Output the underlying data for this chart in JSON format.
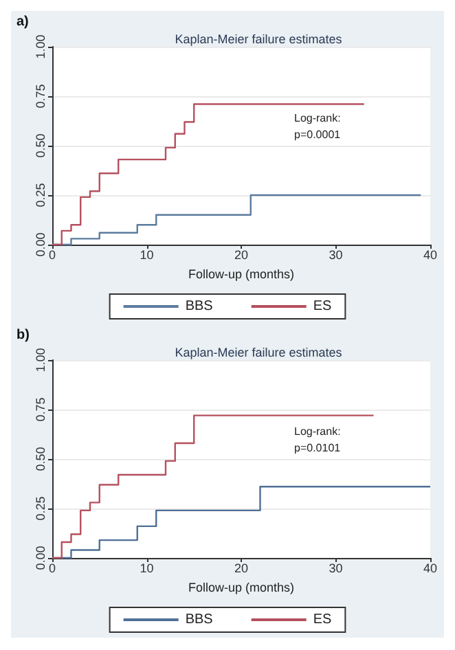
{
  "chart_data": [
    {
      "type": "step",
      "title": "Kaplan-Meier failure estimates",
      "xlabel": "Follow-up (months)",
      "annotations": [
        "a)",
        "Log-rank:\np=0.0001"
      ],
      "series": [
        {
          "name": "BBS",
          "color": "#5b7b9e",
          "x": [
            0,
            2,
            5,
            9,
            11,
            21,
            39
          ],
          "values": [
            0,
            0.03,
            0.06,
            0.1,
            0.15,
            0.25,
            0.25
          ]
        },
        {
          "name": "ES",
          "color": "#b5505e",
          "x": [
            0,
            1,
            2,
            3,
            4,
            5,
            7,
            12,
            13,
            14,
            15,
            33
          ],
          "values": [
            0,
            0.07,
            0.1,
            0.24,
            0.27,
            0.36,
            0.43,
            0.49,
            0.56,
            0.62,
            0.71,
            0.71
          ]
        }
      ],
      "xlim": [
        0,
        40
      ],
      "xticks": [
        0,
        10,
        20,
        30,
        40
      ],
      "ylim": [
        0,
        1
      ],
      "yticks": [
        {
          "value": 0,
          "label": "0.00"
        },
        {
          "value": 0.25,
          "label": "0.25"
        },
        {
          "value": 0.5,
          "label": "0.50"
        },
        {
          "value": 0.75,
          "label": "0.75"
        },
        {
          "value": 1,
          "label": "1.00"
        }
      ],
      "grid": "y",
      "legend": "bottom",
      "marker": "none",
      "line_style": "solid"
    },
    {
      "type": "step",
      "title": "Kaplan-Meier failure estimates",
      "xlabel": "Follow-up (months)",
      "annotations": [
        "b)",
        "Log-rank:\np=0.0101"
      ],
      "series": [
        {
          "name": "BBS",
          "color": "#4f6f96",
          "x": [
            0,
            2,
            5,
            9,
            11,
            22,
            40
          ],
          "values": [
            0,
            0.04,
            0.09,
            0.16,
            0.24,
            0.36,
            0.36
          ]
        },
        {
          "name": "ES",
          "color": "#b5505e",
          "x": [
            0,
            1,
            2,
            3,
            4,
            5,
            7,
            12,
            13,
            15,
            34
          ],
          "values": [
            0,
            0.08,
            0.12,
            0.24,
            0.28,
            0.37,
            0.42,
            0.49,
            0.58,
            0.72,
            0.72
          ]
        }
      ],
      "xlim": [
        0,
        40
      ],
      "xticks": [
        0,
        10,
        20,
        30,
        40
      ],
      "ylim": [
        0,
        1
      ],
      "yticks": [
        {
          "value": 0,
          "label": "0.00"
        },
        {
          "value": 0.25,
          "label": "0.25"
        },
        {
          "value": 0.5,
          "label": "0.50"
        },
        {
          "value": 0.75,
          "label": "0.75"
        },
        {
          "value": 1,
          "label": "1.00"
        }
      ],
      "grid": "y",
      "legend": "bottom",
      "marker": "none",
      "line_style": "solid"
    }
  ]
}
